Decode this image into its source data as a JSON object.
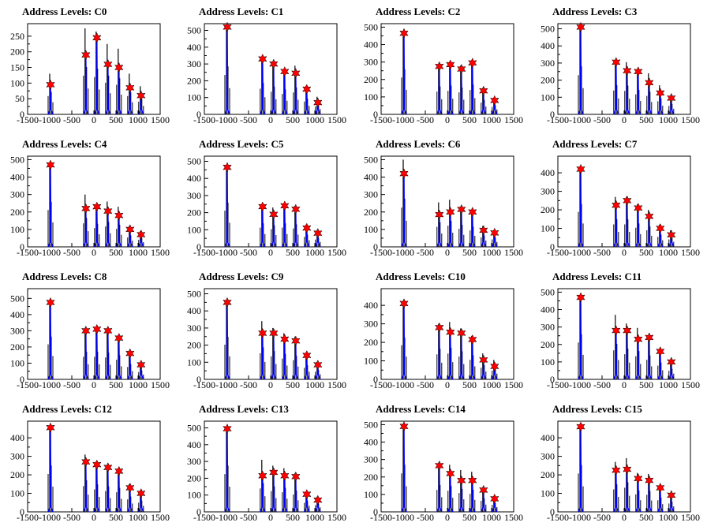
{
  "colors": {
    "spike": "#000000",
    "fit": "#0000ff",
    "marker": "#ff0000",
    "marker_edge": "#000000"
  },
  "chart_data": [
    {
      "type": "bar",
      "title": "Address Levels: C0",
      "xlim": [
        -1500,
        1500
      ],
      "ylim": [
        0,
        290
      ],
      "x_ticks": [
        -1500,
        -1000,
        -500,
        0,
        500,
        1000,
        1500
      ],
      "y_ticks": [
        0,
        50,
        100,
        150,
        200,
        250
      ],
      "peaks": [
        {
          "x": -1000,
          "black": 130,
          "blue": 95
        },
        {
          "x": -200,
          "black": 275,
          "blue": 190
        },
        {
          "x": 50,
          "black": 265,
          "blue": 245
        },
        {
          "x": 300,
          "black": 225,
          "blue": 160
        },
        {
          "x": 550,
          "black": 210,
          "blue": 150
        },
        {
          "x": 800,
          "black": 130,
          "blue": 85
        },
        {
          "x": 1050,
          "black": 90,
          "blue": 60
        }
      ]
    },
    {
      "type": "bar",
      "title": "Address Levels: C1",
      "xlim": [
        -1500,
        1500
      ],
      "ylim": [
        0,
        540
      ],
      "x_ticks": [
        -1500,
        -1000,
        -500,
        0,
        500,
        1000,
        1500
      ],
      "y_ticks": [
        0,
        100,
        200,
        300,
        400,
        500
      ],
      "peaks": [
        {
          "x": -1000,
          "black": 520,
          "blue": 520
        },
        {
          "x": -200,
          "black": 340,
          "blue": 330
        },
        {
          "x": 50,
          "black": 300,
          "blue": 300
        },
        {
          "x": 300,
          "black": 270,
          "blue": 255
        },
        {
          "x": 550,
          "black": 290,
          "blue": 245
        },
        {
          "x": 800,
          "black": 170,
          "blue": 150
        },
        {
          "x": 1050,
          "black": 105,
          "blue": 70
        }
      ]
    },
    {
      "type": "bar",
      "title": "Address Levels: C2",
      "xlim": [
        -1500,
        1500
      ],
      "ylim": [
        0,
        520
      ],
      "x_ticks": [
        -1500,
        -1000,
        -500,
        0,
        500,
        1000,
        1500
      ],
      "y_ticks": [
        0,
        100,
        200,
        300,
        400,
        500
      ],
      "peaks": [
        {
          "x": -1000,
          "black": 470,
          "blue": 465
        },
        {
          "x": -200,
          "black": 290,
          "blue": 275
        },
        {
          "x": 50,
          "black": 300,
          "blue": 285
        },
        {
          "x": 300,
          "black": 280,
          "blue": 260
        },
        {
          "x": 550,
          "black": 310,
          "blue": 295
        },
        {
          "x": 800,
          "black": 150,
          "blue": 135
        },
        {
          "x": 1050,
          "black": 95,
          "blue": 80
        }
      ]
    },
    {
      "type": "bar",
      "title": "Address Levels: C3",
      "xlim": [
        -1500,
        1500
      ],
      "ylim": [
        0,
        530
      ],
      "x_ticks": [
        -1500,
        -1000,
        -500,
        0,
        500,
        1000,
        1500
      ],
      "y_ticks": [
        0,
        100,
        200,
        300,
        400,
        500
      ],
      "peaks": [
        {
          "x": -1000,
          "black": 510,
          "blue": 510
        },
        {
          "x": -200,
          "black": 310,
          "blue": 305
        },
        {
          "x": 50,
          "black": 305,
          "blue": 255
        },
        {
          "x": 300,
          "black": 260,
          "blue": 250
        },
        {
          "x": 550,
          "black": 240,
          "blue": 185
        },
        {
          "x": 800,
          "black": 170,
          "blue": 125
        },
        {
          "x": 1050,
          "black": 110,
          "blue": 95
        }
      ]
    },
    {
      "type": "bar",
      "title": "Address Levels: C4",
      "xlim": [
        -1500,
        1500
      ],
      "ylim": [
        0,
        520
      ],
      "x_ticks": [
        -1500,
        -1000,
        -500,
        0,
        500,
        1000,
        1500
      ],
      "y_ticks": [
        0,
        100,
        200,
        300,
        400,
        500
      ],
      "peaks": [
        {
          "x": -1000,
          "black": 470,
          "blue": 470
        },
        {
          "x": -200,
          "black": 300,
          "blue": 220
        },
        {
          "x": 50,
          "black": 240,
          "blue": 230
        },
        {
          "x": 300,
          "black": 260,
          "blue": 205
        },
        {
          "x": 550,
          "black": 230,
          "blue": 180
        },
        {
          "x": 800,
          "black": 120,
          "blue": 100
        },
        {
          "x": 1050,
          "black": 90,
          "blue": 70
        }
      ]
    },
    {
      "type": "bar",
      "title": "Address Levels: C5",
      "xlim": [
        -1500,
        1500
      ],
      "ylim": [
        0,
        530
      ],
      "x_ticks": [
        -1500,
        -1000,
        -500,
        0,
        500,
        1000,
        1500
      ],
      "y_ticks": [
        0,
        100,
        200,
        300,
        400,
        500
      ],
      "peaks": [
        {
          "x": -1000,
          "black": 470,
          "blue": 465
        },
        {
          "x": -200,
          "black": 250,
          "blue": 235
        },
        {
          "x": 50,
          "black": 230,
          "blue": 190
        },
        {
          "x": 300,
          "black": 250,
          "blue": 240
        },
        {
          "x": 550,
          "black": 240,
          "blue": 220
        },
        {
          "x": 800,
          "black": 130,
          "blue": 110
        },
        {
          "x": 1050,
          "black": 95,
          "blue": 80
        }
      ]
    },
    {
      "type": "bar",
      "title": "Address Levels: C6",
      "xlim": [
        -1500,
        1500
      ],
      "ylim": [
        0,
        520
      ],
      "x_ticks": [
        -1500,
        -1000,
        -500,
        0,
        500,
        1000,
        1500
      ],
      "y_ticks": [
        0,
        100,
        200,
        300,
        400,
        500
      ],
      "peaks": [
        {
          "x": -1000,
          "black": 500,
          "blue": 420
        },
        {
          "x": -200,
          "black": 255,
          "blue": 185
        },
        {
          "x": 50,
          "black": 270,
          "blue": 200
        },
        {
          "x": 300,
          "black": 230,
          "blue": 215
        },
        {
          "x": 550,
          "black": 210,
          "blue": 200
        },
        {
          "x": 800,
          "black": 120,
          "blue": 95
        },
        {
          "x": 1050,
          "black": 95,
          "blue": 80
        }
      ]
    },
    {
      "type": "bar",
      "title": "Address Levels: C7",
      "xlim": [
        -1500,
        1500
      ],
      "ylim": [
        0,
        490
      ],
      "x_ticks": [
        -1500,
        -1000,
        -500,
        0,
        500,
        1000,
        1500
      ],
      "y_ticks": [
        0,
        100,
        200,
        300,
        400
      ],
      "peaks": [
        {
          "x": -1000,
          "black": 420,
          "blue": 420
        },
        {
          "x": -200,
          "black": 270,
          "blue": 225
        },
        {
          "x": 50,
          "black": 270,
          "blue": 250
        },
        {
          "x": 300,
          "black": 230,
          "blue": 210
        },
        {
          "x": 550,
          "black": 200,
          "blue": 165
        },
        {
          "x": 800,
          "black": 120,
          "blue": 100
        },
        {
          "x": 1050,
          "black": 90,
          "blue": 65
        }
      ]
    },
    {
      "type": "bar",
      "title": "Address Levels: C8",
      "xlim": [
        -1500,
        1500
      ],
      "ylim": [
        0,
        560
      ],
      "x_ticks": [
        -1500,
        -1000,
        -500,
        0,
        500,
        1000,
        1500
      ],
      "y_ticks": [
        0,
        100,
        200,
        300,
        400,
        500
      ],
      "peaks": [
        {
          "x": -1000,
          "black": 480,
          "blue": 475
        },
        {
          "x": -200,
          "black": 310,
          "blue": 300
        },
        {
          "x": 50,
          "black": 310,
          "blue": 310
        },
        {
          "x": 300,
          "black": 300,
          "blue": 300
        },
        {
          "x": 550,
          "black": 270,
          "blue": 255
        },
        {
          "x": 800,
          "black": 170,
          "blue": 160
        },
        {
          "x": 1050,
          "black": 100,
          "blue": 90
        }
      ]
    },
    {
      "type": "bar",
      "title": "Address Levels: C9",
      "xlim": [
        -1500,
        1500
      ],
      "ylim": [
        0,
        530
      ],
      "x_ticks": [
        -1500,
        -1000,
        -500,
        0,
        500,
        1000,
        1500
      ],
      "y_ticks": [
        0,
        100,
        200,
        300,
        400,
        500
      ],
      "peaks": [
        {
          "x": -1000,
          "black": 450,
          "blue": 450
        },
        {
          "x": -200,
          "black": 340,
          "blue": 270
        },
        {
          "x": 50,
          "black": 300,
          "blue": 270
        },
        {
          "x": 300,
          "black": 270,
          "blue": 235
        },
        {
          "x": 550,
          "black": 250,
          "blue": 225
        },
        {
          "x": 800,
          "black": 150,
          "blue": 140
        },
        {
          "x": 1050,
          "black": 100,
          "blue": 85
        }
      ]
    },
    {
      "type": "bar",
      "title": "Address Levels: C10",
      "xlim": [
        -1500,
        1500
      ],
      "ylim": [
        0,
        490
      ],
      "x_ticks": [
        -1500,
        -1000,
        -500,
        0,
        500,
        1000,
        1500
      ],
      "y_ticks": [
        0,
        100,
        200,
        300,
        400
      ],
      "peaks": [
        {
          "x": -1000,
          "black": 410,
          "blue": 410
        },
        {
          "x": -200,
          "black": 300,
          "blue": 280
        },
        {
          "x": 50,
          "black": 310,
          "blue": 255
        },
        {
          "x": 300,
          "black": 275,
          "blue": 250
        },
        {
          "x": 550,
          "black": 235,
          "blue": 215
        },
        {
          "x": 800,
          "black": 140,
          "blue": 105
        },
        {
          "x": 1050,
          "black": 105,
          "blue": 70
        }
      ]
    },
    {
      "type": "bar",
      "title": "Address Levels: C11",
      "xlim": [
        -1500,
        1500
      ],
      "ylim": [
        0,
        520
      ],
      "x_ticks": [
        -1500,
        -1000,
        -500,
        0,
        500,
        1000,
        1500
      ],
      "y_ticks": [
        0,
        100,
        200,
        300,
        400,
        500
      ],
      "peaks": [
        {
          "x": -1000,
          "black": 470,
          "blue": 470
        },
        {
          "x": -200,
          "black": 370,
          "blue": 280
        },
        {
          "x": 50,
          "black": 320,
          "blue": 280
        },
        {
          "x": 300,
          "black": 295,
          "blue": 230
        },
        {
          "x": 550,
          "black": 250,
          "blue": 240
        },
        {
          "x": 800,
          "black": 175,
          "blue": 160
        },
        {
          "x": 1050,
          "black": 110,
          "blue": 100
        }
      ]
    },
    {
      "type": "bar",
      "title": "Address Levels: C12",
      "xlim": [
        -1500,
        1500
      ],
      "ylim": [
        0,
        490
      ],
      "x_ticks": [
        -1500,
        -1000,
        -500,
        0,
        500,
        1000,
        1500
      ],
      "y_ticks": [
        0,
        100,
        200,
        300,
        400
      ],
      "peaks": [
        {
          "x": -1000,
          "black": 455,
          "blue": 455
        },
        {
          "x": -200,
          "black": 310,
          "blue": 270
        },
        {
          "x": 50,
          "black": 270,
          "blue": 255
        },
        {
          "x": 300,
          "black": 250,
          "blue": 240
        },
        {
          "x": 550,
          "black": 235,
          "blue": 220
        },
        {
          "x": 800,
          "black": 150,
          "blue": 130
        },
        {
          "x": 1050,
          "black": 110,
          "blue": 100
        }
      ]
    },
    {
      "type": "bar",
      "title": "Address Levels: C13",
      "xlim": [
        -1500,
        1500
      ],
      "ylim": [
        0,
        540
      ],
      "x_ticks": [
        -1500,
        -1000,
        -500,
        0,
        500,
        1000,
        1500
      ],
      "y_ticks": [
        0,
        100,
        200,
        300,
        400,
        500
      ],
      "peaks": [
        {
          "x": -1000,
          "black": 500,
          "blue": 495
        },
        {
          "x": -200,
          "black": 310,
          "blue": 215
        },
        {
          "x": 50,
          "black": 275,
          "blue": 235
        },
        {
          "x": 300,
          "black": 260,
          "blue": 215
        },
        {
          "x": 550,
          "black": 230,
          "blue": 210
        },
        {
          "x": 800,
          "black": 120,
          "blue": 105
        },
        {
          "x": 1050,
          "black": 90,
          "blue": 70
        }
      ]
    },
    {
      "type": "bar",
      "title": "Address Levels: C14",
      "xlim": [
        -1500,
        1500
      ],
      "ylim": [
        0,
        520
      ],
      "x_ticks": [
        -1500,
        -1000,
        -500,
        0,
        500,
        1000,
        1500
      ],
      "y_ticks": [
        0,
        100,
        200,
        300,
        400,
        500
      ],
      "peaks": [
        {
          "x": -1000,
          "black": 490,
          "blue": 490
        },
        {
          "x": -200,
          "black": 280,
          "blue": 265
        },
        {
          "x": 50,
          "black": 270,
          "blue": 220
        },
        {
          "x": 300,
          "black": 240,
          "blue": 180
        },
        {
          "x": 550,
          "black": 230,
          "blue": 180
        },
        {
          "x": 800,
          "black": 140,
          "blue": 125
        },
        {
          "x": 1050,
          "black": 90,
          "blue": 75
        }
      ]
    },
    {
      "type": "bar",
      "title": "Address Levels: C15",
      "xlim": [
        -1500,
        1500
      ],
      "ylim": [
        0,
        490
      ],
      "x_ticks": [
        -1500,
        -1000,
        -500,
        0,
        500,
        1000,
        1500
      ],
      "y_ticks": [
        0,
        100,
        200,
        300,
        400
      ],
      "peaks": [
        {
          "x": -1000,
          "black": 460,
          "blue": 460
        },
        {
          "x": -200,
          "black": 270,
          "blue": 225
        },
        {
          "x": 50,
          "black": 290,
          "blue": 230
        },
        {
          "x": 300,
          "black": 210,
          "blue": 180
        },
        {
          "x": 550,
          "black": 205,
          "blue": 170
        },
        {
          "x": 800,
          "black": 140,
          "blue": 130
        },
        {
          "x": 1050,
          "black": 100,
          "blue": 90
        }
      ]
    }
  ]
}
